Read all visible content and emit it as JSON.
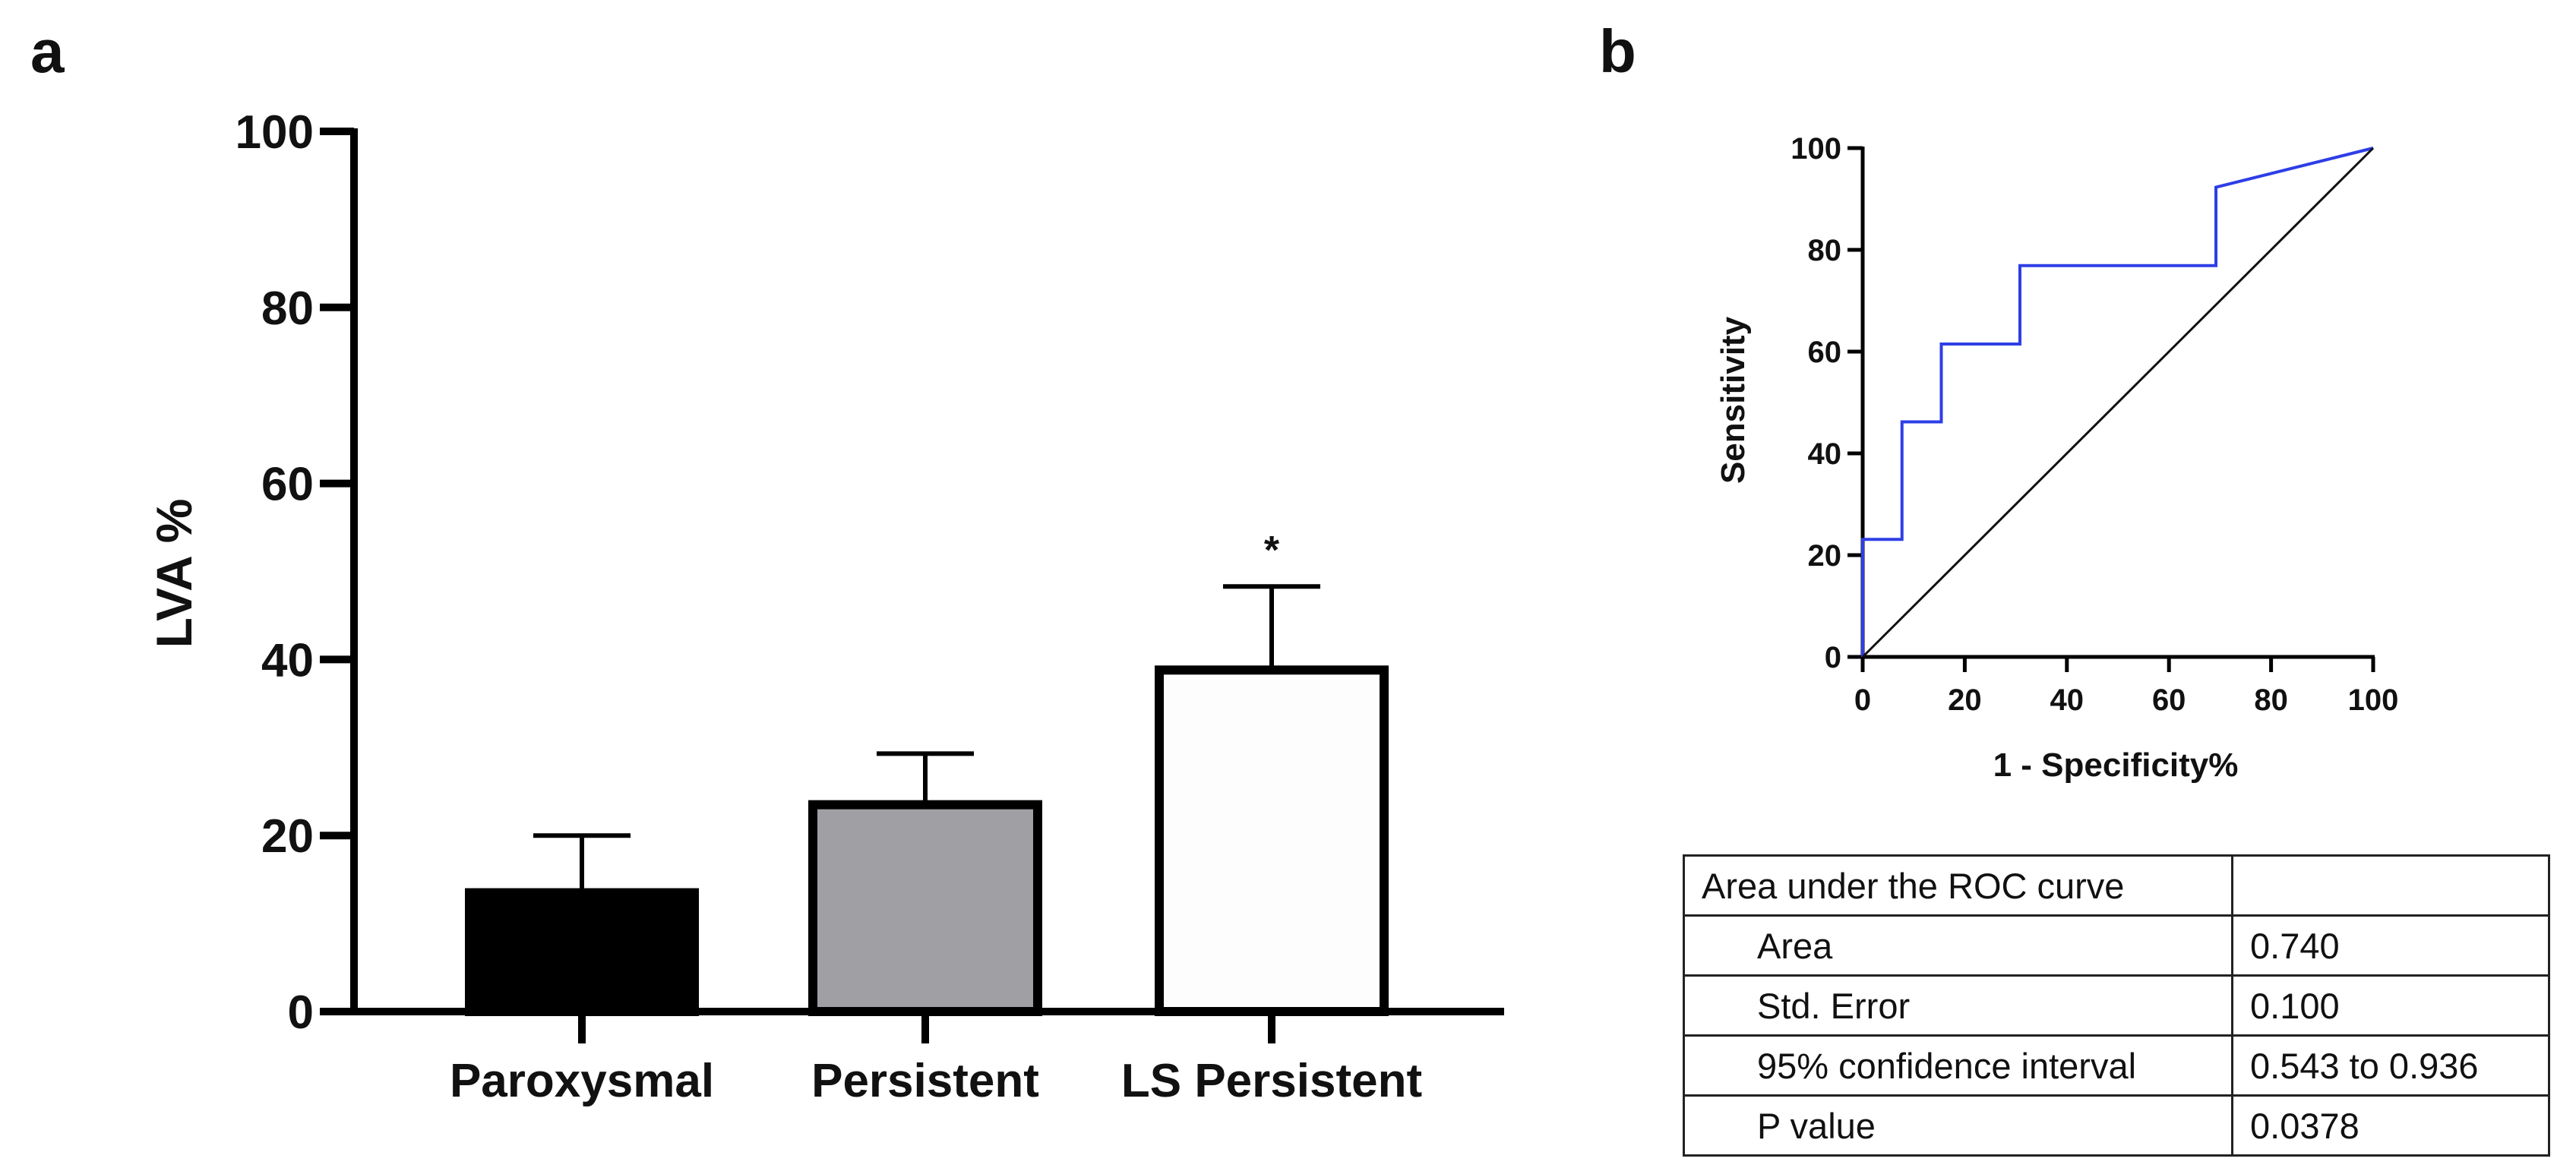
{
  "panels": {
    "a": {
      "letter": "a"
    },
    "b": {
      "letter": "b"
    }
  },
  "chart_data": [
    {
      "type": "bar",
      "panel": "a",
      "title": "",
      "xlabel": "",
      "ylabel": "LVA %",
      "ylim": [
        0,
        100
      ],
      "yticks": [
        0,
        20,
        40,
        60,
        80,
        100
      ],
      "categories": [
        "Paroxysmal",
        "Persistent",
        "LS Persistent"
      ],
      "values": [
        13.5,
        23.5,
        38.8
      ],
      "error_upper": [
        20.0,
        29.3,
        48.3
      ],
      "bar_colors": [
        "#000000",
        "#a0a0a4",
        "#fdfdfd"
      ],
      "annotations": [
        {
          "category": "LS Persistent",
          "text": "*"
        }
      ]
    },
    {
      "type": "line",
      "panel": "b",
      "title": "",
      "xlabel": "1 - Specificity%",
      "ylabel": "Sensitivity",
      "xlim": [
        0,
        100
      ],
      "ylim": [
        0,
        100
      ],
      "xticks": [
        0,
        20,
        40,
        60,
        80,
        100
      ],
      "yticks": [
        0,
        20,
        40,
        60,
        80,
        100
      ],
      "series": [
        {
          "name": "ROC curve",
          "color": "#2e3ee6",
          "x": [
            0,
            0,
            7.7,
            7.7,
            15.4,
            15.4,
            30.8,
            30.8,
            69.2,
            69.2,
            100
          ],
          "y": [
            0,
            23.1,
            23.1,
            46.2,
            46.2,
            61.5,
            61.5,
            76.9,
            76.9,
            92.3,
            100
          ]
        },
        {
          "name": "Reference line",
          "color": "#111111",
          "x": [
            0,
            100
          ],
          "y": [
            0,
            100
          ]
        }
      ]
    }
  ],
  "roc_table": {
    "header": "Area under the ROC curve",
    "header_value": "",
    "rows": [
      {
        "label": "Area",
        "value": "0.740"
      },
      {
        "label": "Std. Error",
        "value": "0.100"
      },
      {
        "label": "95% confidence interval",
        "value": "0.543 to 0.936"
      },
      {
        "label": "P value",
        "value": "0.0378"
      }
    ]
  }
}
